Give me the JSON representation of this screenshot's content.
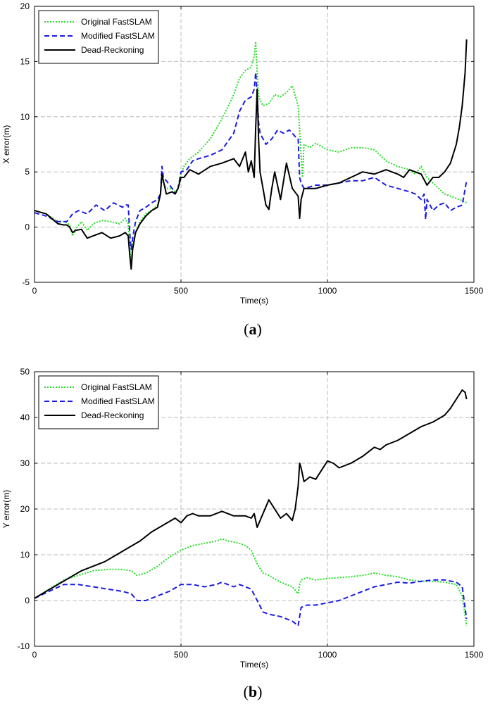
{
  "chart_data": [
    {
      "type": "line",
      "panel": "a",
      "caption": {
        "open": "(",
        "letter": "a",
        "close": ")"
      },
      "xlabel": "Time(s)",
      "ylabel": "X error(m)",
      "xlim": [
        0,
        1500
      ],
      "ylim": [
        -5,
        20
      ],
      "xticks": [
        0,
        500,
        1000,
        1500
      ],
      "yticks": [
        -5,
        0,
        5,
        10,
        15,
        20
      ],
      "grid": true,
      "legend": "top-left",
      "series": [
        {
          "name": "Original FastSLAM",
          "color": "#22e022",
          "style": "dotted",
          "x": [
            0,
            40,
            80,
            100,
            110,
            120,
            130,
            140,
            160,
            180,
            200,
            230,
            260,
            290,
            310,
            320,
            325,
            330,
            335,
            345,
            360,
            380,
            400,
            420,
            430,
            435,
            440,
            450,
            470,
            480,
            490,
            500,
            510,
            530,
            560,
            600,
            640,
            680,
            700,
            720,
            740,
            750,
            755,
            760,
            765,
            770,
            780,
            800,
            820,
            840,
            860,
            880,
            900,
            910,
            915,
            920,
            940,
            960,
            1000,
            1040,
            1080,
            1120,
            1160,
            1200,
            1240,
            1280,
            1300,
            1320,
            1340,
            1360,
            1380,
            1400,
            1420,
            1440,
            1460,
            1475
          ],
          "y": [
            1.5,
            1.2,
            0.5,
            0.5,
            0.4,
            0.2,
            -0.8,
            -0.2,
            0.5,
            -0.3,
            0.3,
            0.6,
            0.5,
            0.3,
            0.8,
            0.3,
            -2.0,
            -3.0,
            -1.5,
            -0.5,
            0.5,
            1.2,
            1.5,
            2.0,
            3.0,
            4.8,
            4.0,
            3.5,
            3.5,
            3.2,
            3.5,
            4.8,
            5.5,
            6.2,
            6.8,
            8.0,
            9.8,
            12.0,
            13.5,
            14.2,
            14.5,
            15.5,
            16.8,
            14.0,
            12.0,
            11.5,
            11.0,
            11.2,
            12.0,
            11.8,
            12.2,
            12.8,
            11.0,
            6.5,
            4.5,
            7.5,
            7.2,
            7.6,
            7.0,
            6.8,
            7.2,
            7.2,
            7.0,
            6.0,
            5.5,
            5.2,
            4.8,
            5.5,
            4.5,
            4.0,
            3.5,
            3.0,
            2.8,
            2.6,
            2.4,
            2.2
          ]
        },
        {
          "name": "Modified FastSLAM",
          "color": "#1a1ae6",
          "style": "dashed",
          "x": [
            0,
            40,
            80,
            110,
            130,
            150,
            180,
            210,
            240,
            270,
            300,
            310,
            320,
            325,
            330,
            335,
            345,
            360,
            380,
            400,
            420,
            430,
            435,
            440,
            450,
            470,
            480,
            490,
            500,
            520,
            540,
            560,
            600,
            640,
            680,
            700,
            720,
            740,
            750,
            755,
            760,
            765,
            770,
            790,
            810,
            830,
            850,
            870,
            890,
            900,
            905,
            910,
            920,
            960,
            1000,
            1040,
            1080,
            1120,
            1160,
            1200,
            1240,
            1280,
            1300,
            1320,
            1330,
            1335,
            1340,
            1360,
            1380,
            1400,
            1420,
            1440,
            1460,
            1475
          ],
          "y": [
            1.3,
            1.0,
            0.5,
            0.5,
            1.2,
            1.5,
            1.2,
            2.0,
            1.5,
            2.2,
            1.8,
            2.0,
            2.0,
            -0.5,
            -2.0,
            -1.0,
            0.5,
            1.5,
            1.8,
            2.2,
            2.5,
            3.0,
            5.5,
            4.5,
            4.2,
            3.5,
            3.0,
            3.5,
            5.0,
            5.2,
            6.0,
            6.2,
            6.5,
            7.0,
            8.5,
            10.5,
            11.5,
            11.8,
            12.5,
            14.0,
            12.0,
            9.5,
            8.5,
            7.5,
            8.0,
            8.8,
            8.5,
            8.8,
            8.2,
            8.0,
            4.5,
            4.0,
            3.5,
            3.8,
            3.8,
            4.0,
            4.2,
            4.2,
            4.5,
            3.8,
            3.5,
            3.2,
            3.0,
            2.5,
            3.0,
            0.7,
            2.5,
            1.5,
            2.0,
            2.2,
            1.5,
            1.8,
            2.0,
            4.2
          ]
        },
        {
          "name": "Dead-Reckoning",
          "color": "#000000",
          "style": "solid",
          "x": [
            0,
            40,
            80,
            100,
            110,
            120,
            130,
            140,
            160,
            180,
            200,
            230,
            260,
            290,
            310,
            320,
            325,
            330,
            335,
            345,
            360,
            380,
            400,
            420,
            430,
            435,
            440,
            450,
            470,
            480,
            490,
            500,
            510,
            530,
            560,
            600,
            640,
            680,
            700,
            720,
            730,
            740,
            750,
            755,
            760,
            765,
            770,
            780,
            790,
            800,
            810,
            820,
            840,
            860,
            880,
            900,
            905,
            910,
            920,
            960,
            1000,
            1040,
            1080,
            1120,
            1160,
            1200,
            1240,
            1260,
            1280,
            1300,
            1320,
            1340,
            1360,
            1380,
            1400,
            1420,
            1440,
            1450,
            1460,
            1470,
            1475
          ],
          "y": [
            1.5,
            1.2,
            0.3,
            0.2,
            0.2,
            0.0,
            -0.5,
            -0.3,
            -0.2,
            -1.0,
            -0.8,
            -0.5,
            -1.0,
            -0.8,
            -0.5,
            -0.8,
            -2.5,
            -3.8,
            -2.0,
            -0.5,
            0.3,
            1.0,
            1.5,
            1.8,
            3.0,
            4.8,
            4.2,
            3.0,
            3.2,
            3.0,
            3.5,
            4.5,
            4.5,
            5.2,
            4.8,
            5.5,
            5.8,
            6.2,
            5.5,
            6.8,
            5.0,
            6.0,
            4.5,
            9.0,
            12.5,
            8.0,
            5.0,
            3.5,
            2.0,
            1.6,
            3.5,
            5.0,
            2.5,
            5.8,
            3.5,
            2.8,
            0.8,
            2.5,
            3.5,
            3.5,
            3.8,
            4.0,
            4.5,
            5.0,
            4.8,
            5.2,
            4.8,
            4.5,
            5.2,
            5.0,
            4.8,
            3.8,
            4.5,
            4.5,
            5.0,
            5.8,
            7.5,
            9.0,
            11.0,
            14.0,
            17.0
          ]
        }
      ]
    },
    {
      "type": "line",
      "panel": "b",
      "caption": {
        "open": "(",
        "letter": "b",
        "close": ")"
      },
      "xlabel": "Time(s)",
      "ylabel": "Y error(m)",
      "xlim": [
        0,
        1500
      ],
      "ylim": [
        -10,
        50
      ],
      "xticks": [
        0,
        500,
        1000,
        1500
      ],
      "yticks": [
        -10,
        0,
        10,
        20,
        30,
        40,
        50
      ],
      "grid": true,
      "legend": "top-left",
      "series": [
        {
          "name": "Original FastSLAM",
          "color": "#22e022",
          "style": "dotted",
          "x": [
            0,
            50,
            100,
            150,
            200,
            250,
            300,
            330,
            350,
            380,
            420,
            460,
            500,
            540,
            580,
            620,
            640,
            660,
            680,
            700,
            720,
            740,
            760,
            780,
            800,
            840,
            880,
            900,
            905,
            910,
            930,
            960,
            1000,
            1040,
            1080,
            1120,
            1160,
            1200,
            1240,
            1280,
            1320,
            1360,
            1400,
            1440,
            1460,
            1475
          ],
          "y": [
            0.5,
            2.5,
            4.5,
            5.5,
            6.5,
            6.8,
            6.8,
            6.5,
            5.5,
            6.0,
            7.5,
            9.5,
            11.0,
            12.0,
            12.5,
            13.0,
            13.5,
            13.0,
            12.8,
            12.5,
            12.0,
            11.0,
            8.0,
            6.0,
            5.5,
            4.0,
            3.0,
            1.5,
            3.5,
            4.5,
            5.0,
            4.5,
            4.8,
            5.0,
            5.2,
            5.5,
            6.0,
            5.5,
            5.2,
            4.5,
            4.2,
            4.2,
            4.0,
            3.5,
            1.0,
            -5.5
          ]
        },
        {
          "name": "Modified FastSLAM",
          "color": "#1a1ae6",
          "style": "dashed",
          "x": [
            0,
            50,
            100,
            150,
            200,
            250,
            300,
            330,
            350,
            380,
            420,
            460,
            500,
            540,
            580,
            620,
            640,
            660,
            680,
            700,
            720,
            740,
            760,
            780,
            800,
            840,
            880,
            900,
            905,
            910,
            930,
            960,
            1000,
            1040,
            1080,
            1120,
            1160,
            1200,
            1240,
            1280,
            1320,
            1360,
            1400,
            1440,
            1460,
            1475
          ],
          "y": [
            0.5,
            2.0,
            3.5,
            3.5,
            3.0,
            2.5,
            2.0,
            1.5,
            0.0,
            0.0,
            1.0,
            2.0,
            3.5,
            3.5,
            3.0,
            3.5,
            4.0,
            3.5,
            3.0,
            3.5,
            3.0,
            2.5,
            0.0,
            -2.5,
            -3.0,
            -3.5,
            -4.5,
            -5.5,
            -3.5,
            -1.5,
            -1.0,
            -1.0,
            -0.5,
            0.0,
            1.0,
            2.0,
            3.0,
            3.5,
            4.0,
            3.8,
            4.2,
            4.5,
            4.5,
            4.0,
            3.0,
            -4.0
          ]
        },
        {
          "name": "Dead-Reckoning",
          "color": "#000000",
          "style": "solid",
          "x": [
            0,
            40,
            80,
            120,
            160,
            200,
            240,
            280,
            320,
            360,
            400,
            440,
            480,
            500,
            520,
            540,
            560,
            600,
            640,
            680,
            720,
            740,
            750,
            760,
            780,
            800,
            820,
            840,
            860,
            880,
            890,
            900,
            905,
            910,
            920,
            940,
            960,
            980,
            1000,
            1020,
            1040,
            1080,
            1120,
            1160,
            1180,
            1200,
            1240,
            1280,
            1320,
            1360,
            1400,
            1420,
            1440,
            1460,
            1470,
            1475
          ],
          "y": [
            0.5,
            2.0,
            3.5,
            5.0,
            6.5,
            7.5,
            8.5,
            10.0,
            11.5,
            13.0,
            15.0,
            16.5,
            18.0,
            17.0,
            18.5,
            19.0,
            18.5,
            18.5,
            19.5,
            18.5,
            18.5,
            18.0,
            19.0,
            16.0,
            19.0,
            22.0,
            20.0,
            18.0,
            19.0,
            17.5,
            20.0,
            25.0,
            30.0,
            29.0,
            26.0,
            27.0,
            26.5,
            28.5,
            30.5,
            30.0,
            29.0,
            30.0,
            31.5,
            33.5,
            33.0,
            34.0,
            35.0,
            36.5,
            38.0,
            39.0,
            40.5,
            42.0,
            44.0,
            46.0,
            45.5,
            44.0
          ]
        }
      ]
    }
  ]
}
